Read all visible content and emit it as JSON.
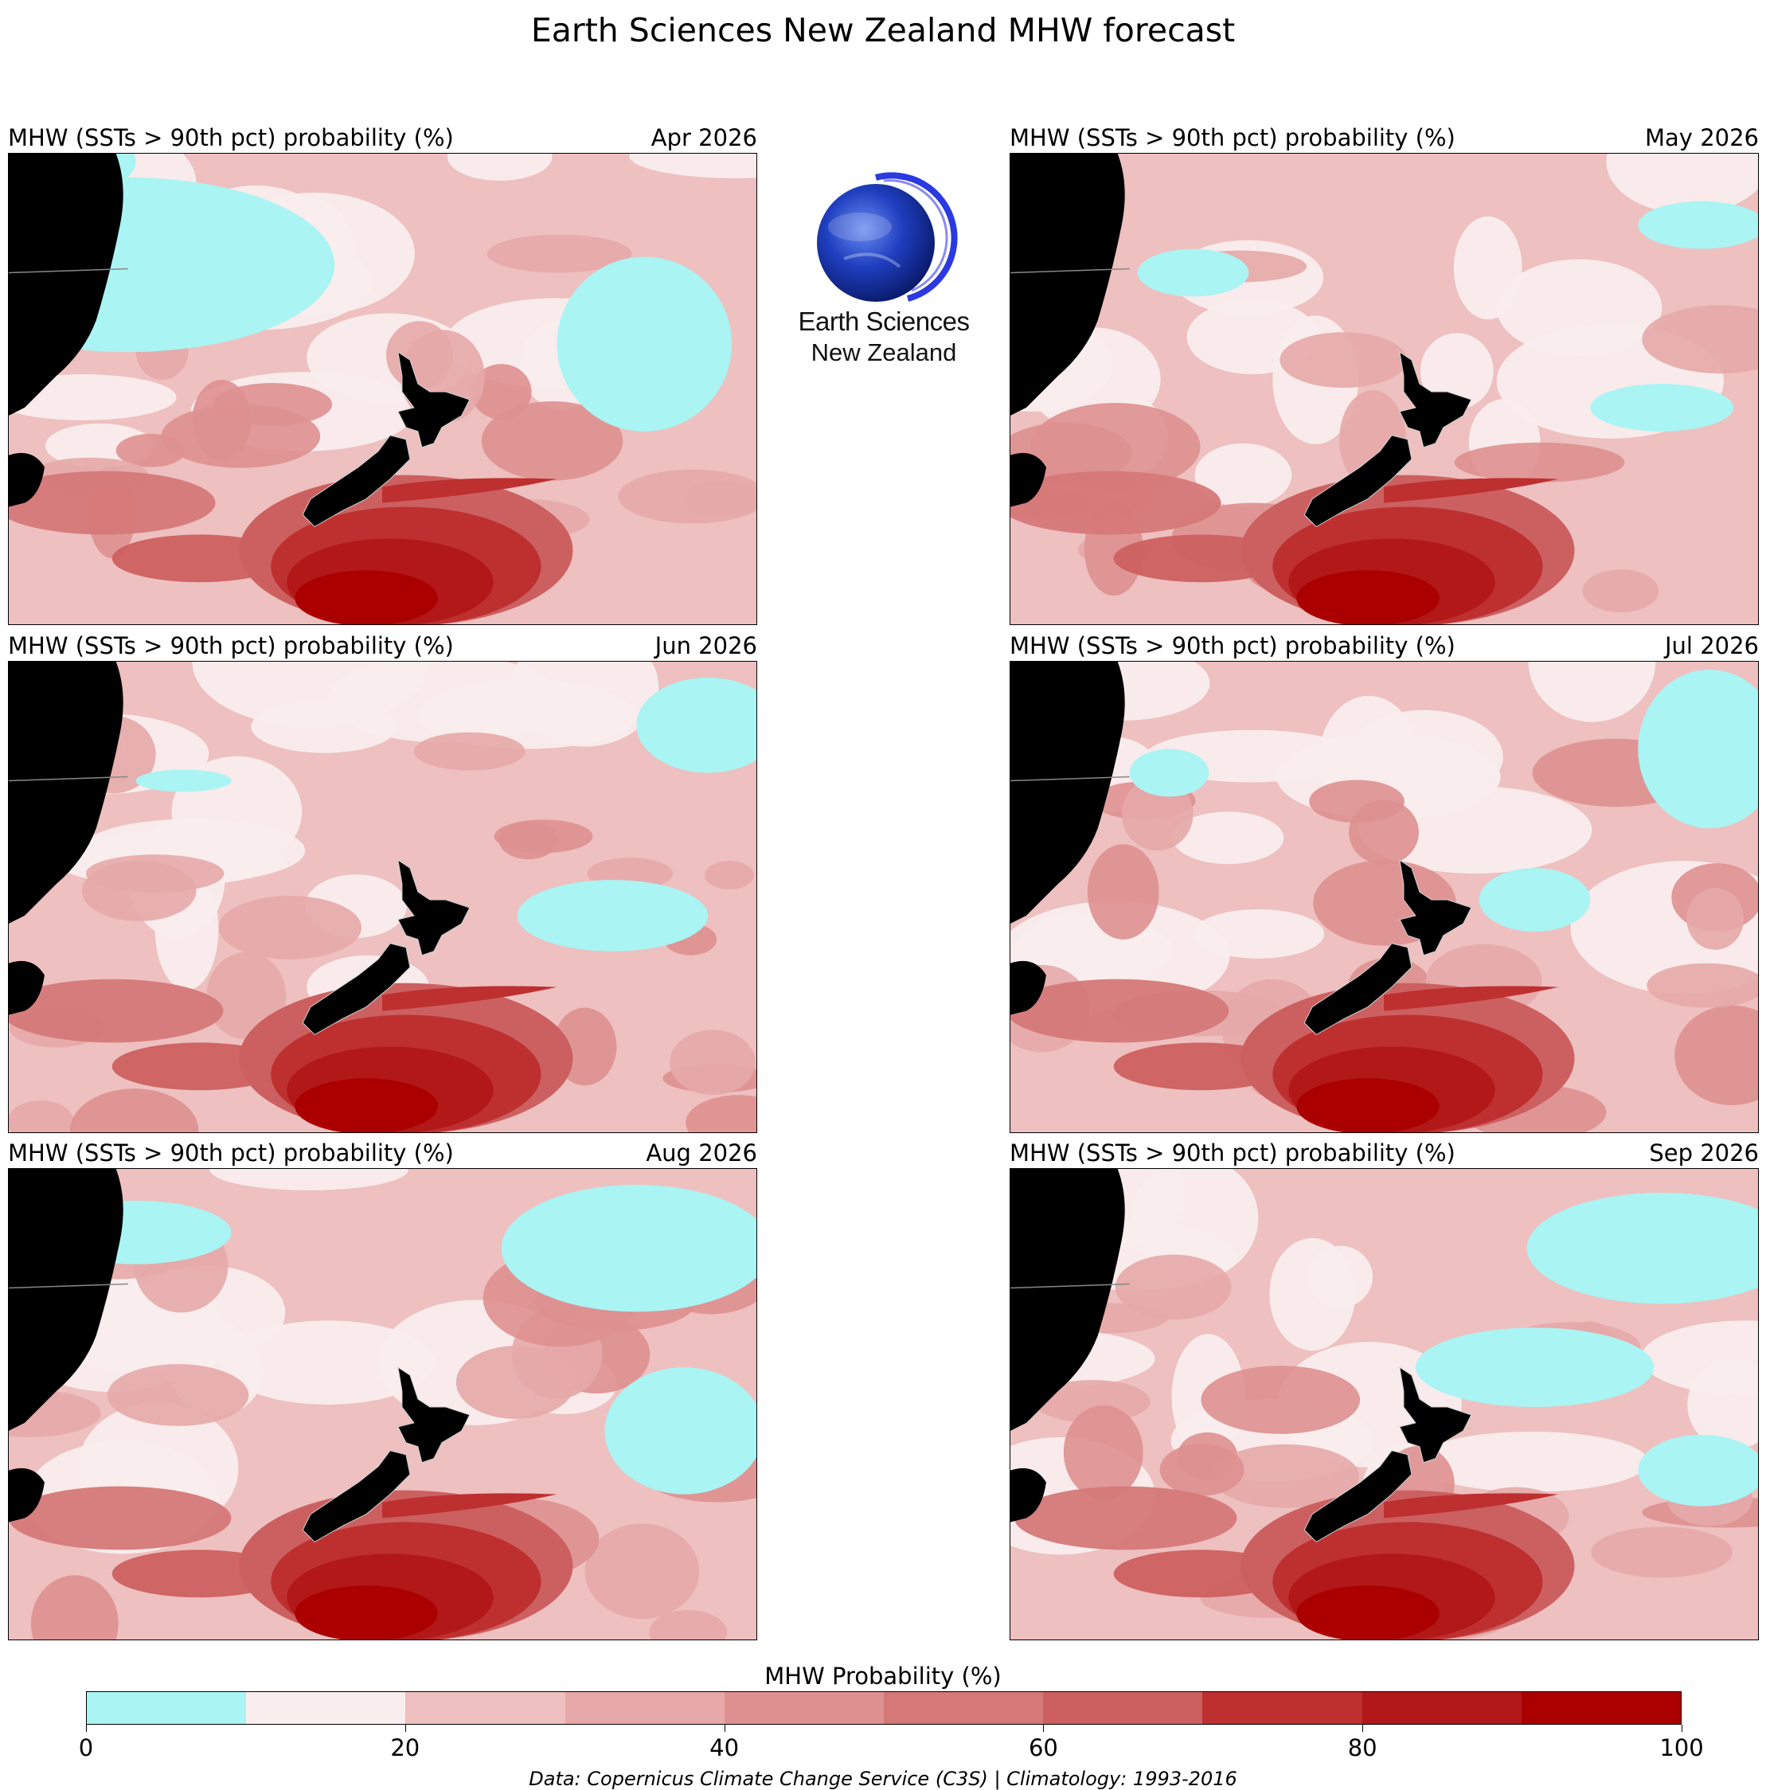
{
  "title": "Earth Sciences New Zealand MHW forecast",
  "logo": {
    "line1": "Earth Sciences",
    "line2": "New Zealand",
    "icon": "globe-icon"
  },
  "panels": [
    {
      "variable": "MHW (SSTs > 90th pct) probability (%)",
      "date": "Apr 2026"
    },
    {
      "variable": "MHW (SSTs > 90th pct) probability (%)",
      "date": "May 2026"
    },
    {
      "variable": "MHW (SSTs > 90th pct) probability (%)",
      "date": "Jun 2026"
    },
    {
      "variable": "MHW (SSTs > 90th pct) probability (%)",
      "date": "Jul 2026"
    },
    {
      "variable": "MHW (SSTs > 90th pct) probability (%)",
      "date": "Aug 2026"
    },
    {
      "variable": "MHW (SSTs > 90th pct) probability (%)",
      "date": "Sep 2026"
    }
  ],
  "colorbar": {
    "label": "MHW Probability (%)",
    "ticks": [
      "0",
      "20",
      "40",
      "60",
      "80",
      "100"
    ],
    "colors": [
      "#aaf4f4",
      "#f9eded",
      "#eec0c0",
      "#e6a8a8",
      "#de9090",
      "#d57878",
      "#cc6060",
      "#be3030",
      "#b21818",
      "#aa0000"
    ]
  },
  "source": "Data: Copernicus Climate Change Service (C3S) | Climatology: 1993-2016",
  "colors": {
    "land": "#000000",
    "ocean_base": "#ecb6b6",
    "low": "#aaf4f4",
    "white": "#f9eded",
    "high": "#aa0000"
  }
}
